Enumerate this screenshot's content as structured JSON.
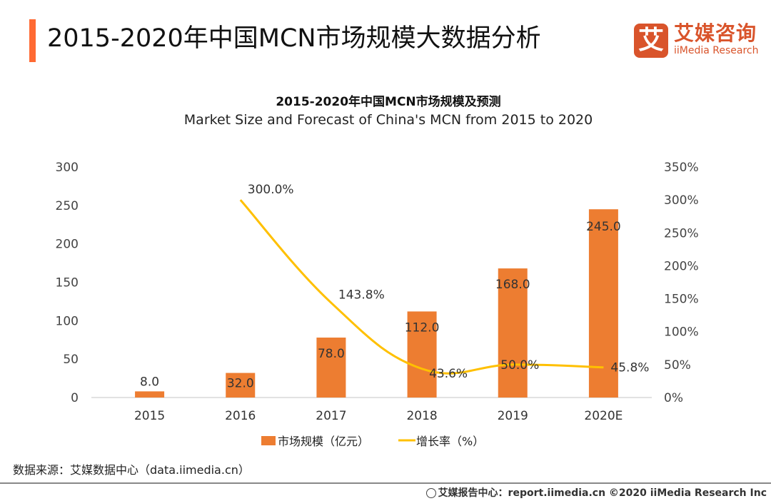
{
  "header": {
    "title": "2015-2020年中国MCN市场规模大数据分析",
    "accent_color": "#ff6a33"
  },
  "logo": {
    "mark": "艾",
    "name_cn": "艾媒咨询",
    "name_en": "iiMedia Research",
    "color": "#d9542b"
  },
  "chart_data": {
    "type": "bar",
    "title": "2015-2020年中国MCN市场规模及预测",
    "subtitle": "Market Size and Forecast of China's MCN from 2015 to 2020",
    "categories": [
      "2015",
      "2016",
      "2017",
      "2018",
      "2019",
      "2020E"
    ],
    "series": [
      {
        "name": "市场规模（亿元）",
        "type": "bar",
        "axis": "left",
        "color": "#ed7d31",
        "values": [
          8.0,
          32.0,
          78.0,
          112.0,
          168.0,
          245.0
        ],
        "labels": [
          "8.0",
          "32.0",
          "78.0",
          "112.0",
          "168.0",
          "245.0"
        ]
      },
      {
        "name": "增长率（%）",
        "type": "line",
        "axis": "right",
        "color": "#ffc000",
        "values": [
          null,
          300.0,
          143.8,
          43.6,
          50.0,
          45.8
        ],
        "labels": [
          "",
          "300.0%",
          "143.8%",
          "43.6%",
          "50.0%",
          "45.8%"
        ]
      }
    ],
    "y_left": {
      "min": 0,
      "max": 300,
      "ticks": [
        "0",
        "50",
        "100",
        "150",
        "200",
        "250",
        "300"
      ]
    },
    "y_right": {
      "min": 0,
      "max": 350,
      "ticks": [
        "0%",
        "50%",
        "100%",
        "150%",
        "200%",
        "250%",
        "300%",
        "350%"
      ]
    },
    "xlabel": "",
    "ylabel": "",
    "grid": false,
    "legend": "bottom",
    "legend_items": [
      "市场规模（亿元）",
      "增长率（%）"
    ]
  },
  "source": "数据来源：艾媒数据中心（data.iimedia.cn）",
  "footer": "艾媒报告中心：report.iimedia.cn  ©2020  iiMedia Research Inc"
}
